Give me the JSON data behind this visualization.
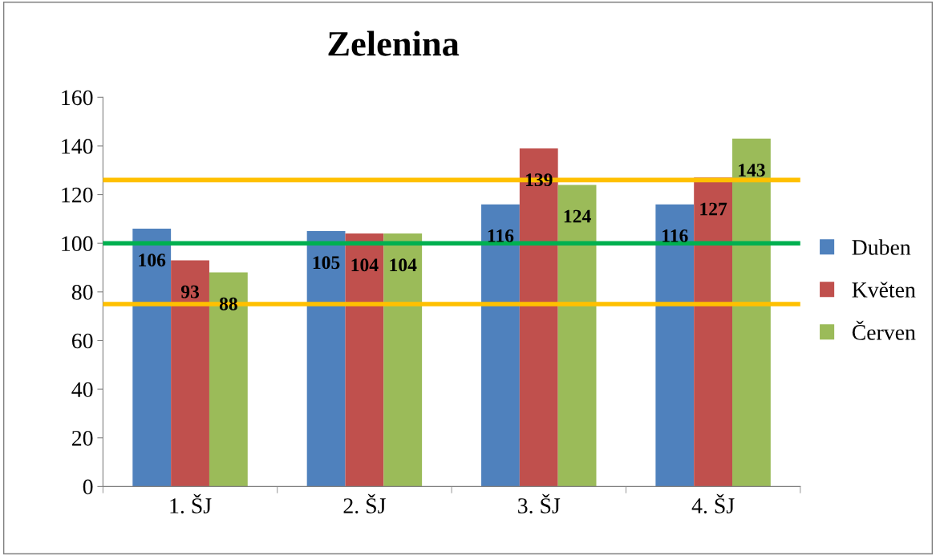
{
  "chart_data": {
    "type": "bar",
    "title": "Zelenina",
    "categories": [
      "1. ŠJ",
      "2. ŠJ",
      "3. ŠJ",
      "4. ŠJ"
    ],
    "series": [
      {
        "name": "Duben",
        "color": "#4f81bd",
        "values": [
          106,
          105,
          116,
          116
        ]
      },
      {
        "name": "Květen",
        "color": "#c0504d",
        "values": [
          93,
          104,
          139,
          127
        ]
      },
      {
        "name": "Červen",
        "color": "#9bbb59",
        "values": [
          88,
          104,
          124,
          143
        ]
      }
    ],
    "ylim": [
      0,
      160
    ],
    "yticks": [
      0,
      20,
      40,
      60,
      80,
      100,
      120,
      140,
      160
    ],
    "ref_lines": [
      {
        "axis": "y",
        "value": 126,
        "color": "#ffc000"
      },
      {
        "axis": "y",
        "value": 100,
        "color": "#00b050"
      },
      {
        "axis": "y",
        "value": 75,
        "color": "#ffc000"
      }
    ],
    "data_labels": true,
    "grid": false,
    "legend": "right"
  }
}
